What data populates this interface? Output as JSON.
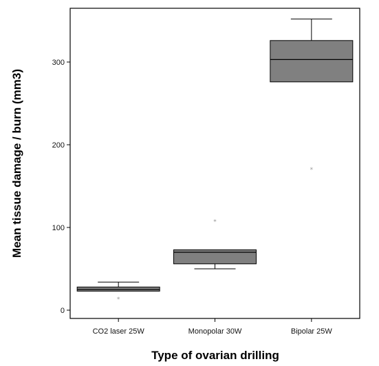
{
  "chart_data": {
    "type": "box",
    "title": "",
    "xlabel": "Type of ovarian drilling",
    "ylabel": "Mean tissue damage / burn (mm3)",
    "categories": [
      "CO2 laser 25W",
      "Monopolar 30W",
      "Bipolar 25W"
    ],
    "y_ticks": [
      0,
      100,
      200,
      300
    ],
    "ylim": [
      -10,
      365
    ],
    "grid": false,
    "legend": "none",
    "series": [
      {
        "min": 23,
        "q1": 23,
        "median": 25,
        "q3": 28,
        "max": 34,
        "outliers": [
          14
        ]
      },
      {
        "min": 50,
        "q1": 56,
        "median": 70,
        "q3": 73,
        "max": 73,
        "outliers": [
          108
        ]
      },
      {
        "min": 276,
        "q1": 276,
        "median": 303,
        "q3": 326,
        "max": 352,
        "outliers": [
          171
        ]
      }
    ],
    "outlier_symbol": "*",
    "colors": {
      "box_fill": "#808080",
      "box_stroke": "#000000",
      "outlier": "#999999",
      "frame": "#000000"
    }
  }
}
